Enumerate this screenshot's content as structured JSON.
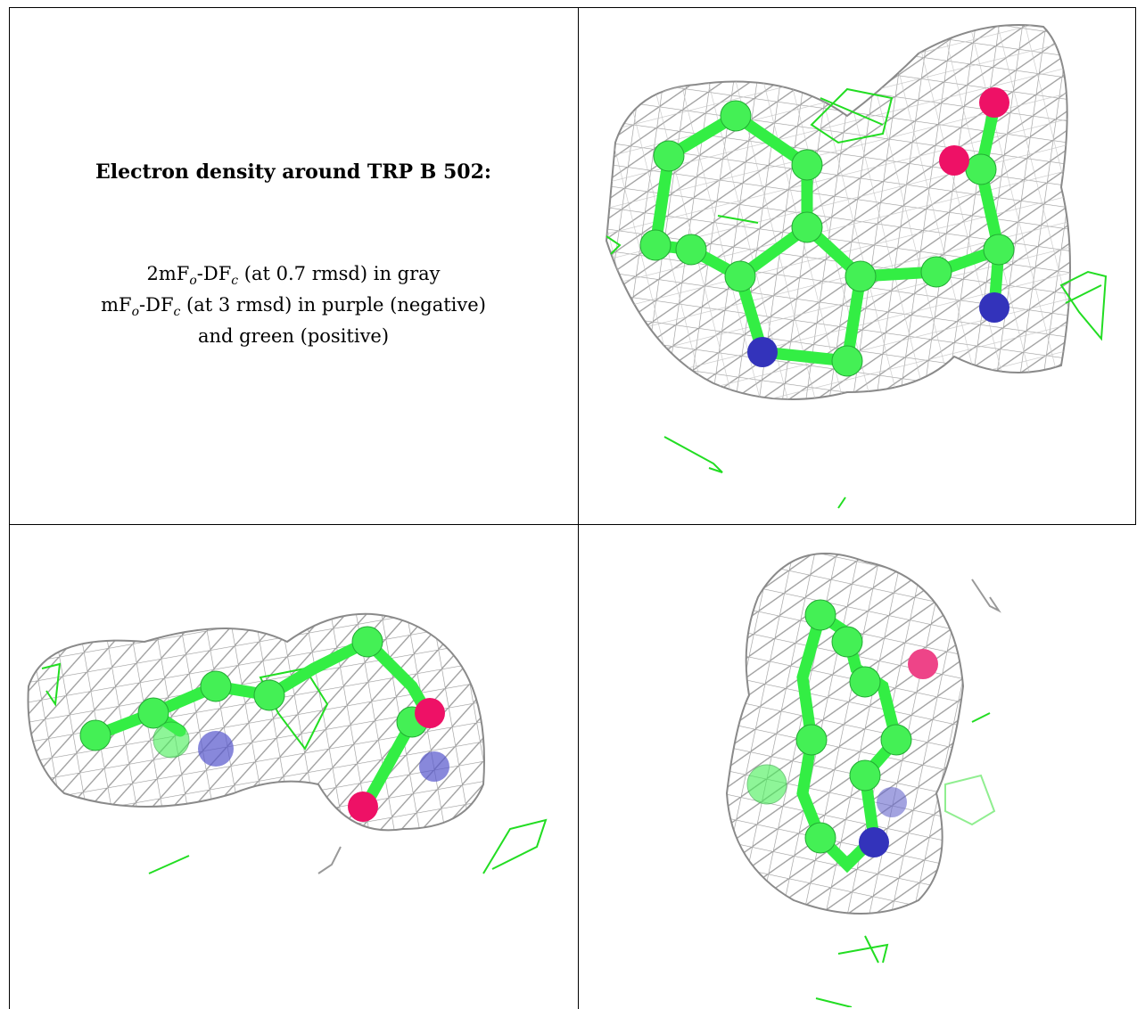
{
  "caption": {
    "title": "Electron density around TRP B 502:",
    "line1": {
      "pre": "2mF",
      "sub1": "o",
      "mid": "-DF",
      "sub2": "c",
      "post": " (at 0.7 rmsd) in gray"
    },
    "line2": {
      "pre": "mF",
      "sub1": "o",
      "mid": "-DF",
      "sub2": "c",
      "post": " (at 3 rmsd) in purple (negative)"
    },
    "line3": "and green (positive)"
  },
  "colors": {
    "mesh_gray": "#a8a8a8",
    "carbon_green": "#33ee44",
    "nitrogen_blue": "#3333bb",
    "oxygen_pink": "#ee1166",
    "positive_green": "#22dd22",
    "negative_purple": "#cc22cc"
  },
  "panels": [
    {
      "name": "view-top-right"
    },
    {
      "name": "view-bottom-left"
    },
    {
      "name": "view-bottom-right"
    }
  ]
}
